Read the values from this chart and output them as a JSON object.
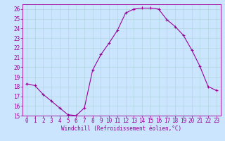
{
  "x": [
    0,
    1,
    2,
    3,
    4,
    5,
    6,
    7,
    8,
    9,
    10,
    11,
    12,
    13,
    14,
    15,
    16,
    17,
    18,
    19,
    20,
    21,
    22,
    23
  ],
  "y": [
    18.3,
    18.1,
    17.2,
    16.5,
    15.8,
    15.1,
    15.0,
    15.8,
    19.7,
    21.3,
    22.5,
    23.8,
    25.6,
    26.0,
    26.1,
    26.1,
    26.0,
    24.9,
    24.2,
    23.3,
    21.8,
    20.1,
    18.0,
    17.6
  ],
  "line_color": "#990099",
  "marker": "+",
  "bg_color": "#cce5ff",
  "grid_major_color": "#aad4d4",
  "grid_minor_color": "#bbdddd",
  "xlabel": "Windchill (Refroidissement éolien,°C)",
  "ylabel": "",
  "ylim": [
    15,
    26.5
  ],
  "xlim": [
    -0.5,
    23.5
  ],
  "yticks": [
    15,
    16,
    17,
    18,
    19,
    20,
    21,
    22,
    23,
    24,
    25,
    26
  ],
  "xticks": [
    0,
    1,
    2,
    3,
    4,
    5,
    6,
    7,
    8,
    9,
    10,
    11,
    12,
    13,
    14,
    15,
    16,
    17,
    18,
    19,
    20,
    21,
    22,
    23
  ],
  "axis_fontsize": 5.5,
  "tick_fontsize": 5.5,
  "spine_color": "#990099",
  "label_color": "#990099"
}
